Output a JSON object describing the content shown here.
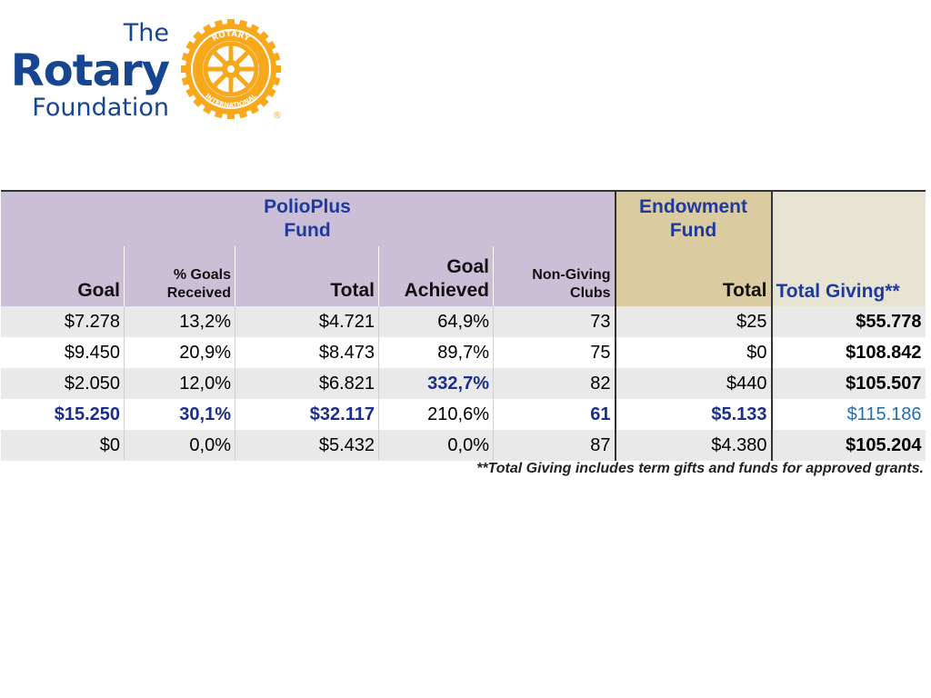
{
  "logo": {
    "line1": "The",
    "line2": "Rotary",
    "line3": "Foundation",
    "wheel_top_text": "ROTARY",
    "wheel_bottom_text": "INTERNATIONAL",
    "registered_mark": "®",
    "brand_blue": "#17458f",
    "brand_gold": "#f7a81b"
  },
  "table": {
    "group_headers": {
      "polioplus": [
        "PolioPlus",
        "Fund"
      ],
      "endowment": [
        "Endowment",
        "Fund"
      ]
    },
    "columns": {
      "goal": "Goal",
      "pct_goals_received": [
        "% Goals",
        "Received"
      ],
      "total": "Total",
      "goal_achieved": [
        "Goal",
        "Achieved"
      ],
      "non_giving_clubs": [
        "Non-Giving",
        "Clubs"
      ],
      "endowment_total": "Total",
      "total_giving": "Total Giving**"
    },
    "rows": [
      {
        "goal": "$7.278",
        "pct": "13,2%",
        "total": "$4.721",
        "achieved": "64,9%",
        "nongiving": "73",
        "endow": "$25",
        "giving": "$55.778"
      },
      {
        "goal": "$9.450",
        "pct": "20,9%",
        "total": "$8.473",
        "achieved": "89,7%",
        "nongiving": "75",
        "endow": "$0",
        "giving": "$108.842"
      },
      {
        "goal": "$2.050",
        "pct": "12,0%",
        "total": "$6.821",
        "achieved": "332,7%",
        "nongiving": "82",
        "endow": "$440",
        "giving": "$105.507"
      },
      {
        "goal": "$15.250",
        "pct": "30,1%",
        "total": "$32.117",
        "achieved": "210,6%",
        "nongiving": "61",
        "endow": "$5.133",
        "giving": "$115.186"
      },
      {
        "goal": "$0",
        "pct": "0,0%",
        "total": "$5.432",
        "achieved": "0,0%",
        "nongiving": "87",
        "endow": "$4.380",
        "giving": "$105.204"
      }
    ],
    "colors": {
      "polio_header": "#cbbfd8",
      "endowment_header": "#dacba0",
      "total_header": "#e8e4d4",
      "highlight_blue": "#1a2f8c",
      "teal_value": "#1f6fb0"
    }
  },
  "footnote": "**Total Giving includes term gifts and funds for approved grants."
}
